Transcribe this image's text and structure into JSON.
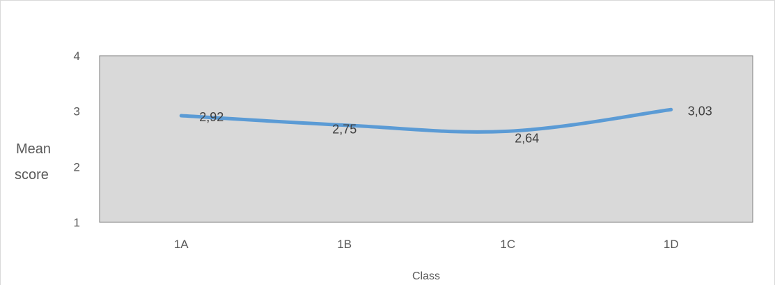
{
  "chart_data": {
    "type": "line",
    "title": "",
    "xlabel": "Class",
    "ylabel_line1": "Mean",
    "ylabel_line2": "score",
    "categories": [
      "1A",
      "1B",
      "1C",
      "1D"
    ],
    "series": [
      {
        "values": [
          2.92,
          2.75,
          2.64,
          3.03
        ],
        "data_labels": [
          "2,92",
          "2,75",
          "2,64",
          "3,03"
        ],
        "color": "#5b9bd5"
      }
    ],
    "yticks": [
      1,
      2,
      3,
      4
    ],
    "ytick_labels": [
      "1",
      "2",
      "3",
      "4"
    ],
    "ylim": [
      1,
      4
    ],
    "grid": false,
    "plot_background": "#d9d9d9",
    "plot_border": "#7f7f7f"
  }
}
